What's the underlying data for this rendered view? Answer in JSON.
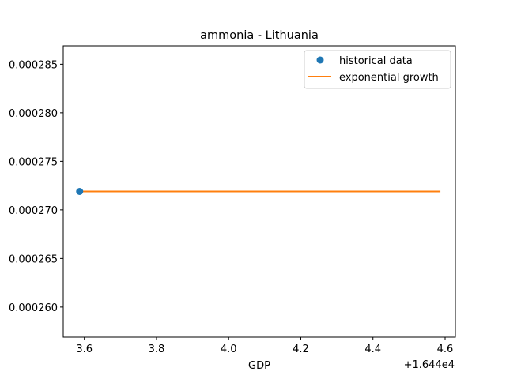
{
  "chart_data": {
    "type": "line",
    "title": "ammonia - Lithuania",
    "xlabel": "GDP",
    "ylabel": "",
    "x_offset_label": "+1.644e4",
    "xlim": [
      3.5415,
      4.6285
    ],
    "ylim": [
      0.0002569,
      0.0002869
    ],
    "x_ticks": [
      3.6,
      3.8,
      4.0,
      4.2,
      4.4,
      4.6
    ],
    "x_tick_labels": [
      "3.6",
      "3.8",
      "4.0",
      "4.2",
      "4.4",
      "4.6"
    ],
    "y_ticks": [
      0.00026,
      0.000265,
      0.00027,
      0.000275,
      0.00028,
      0.000285
    ],
    "y_tick_labels": [
      "0.000260",
      "0.000265",
      "0.000270",
      "0.000275",
      "0.000280",
      "0.000285"
    ],
    "grid": false,
    "legend_position": "top-right",
    "series": [
      {
        "name": "historical data",
        "kind": "scatter",
        "color": "#1f77b4",
        "points": [
          [
            3.587,
            0.0002719
          ]
        ]
      },
      {
        "name": "exponential growth",
        "kind": "line",
        "color": "#ff7f0e",
        "points": [
          [
            3.587,
            0.0002719
          ],
          [
            4.587,
            0.0002719
          ]
        ]
      }
    ]
  }
}
